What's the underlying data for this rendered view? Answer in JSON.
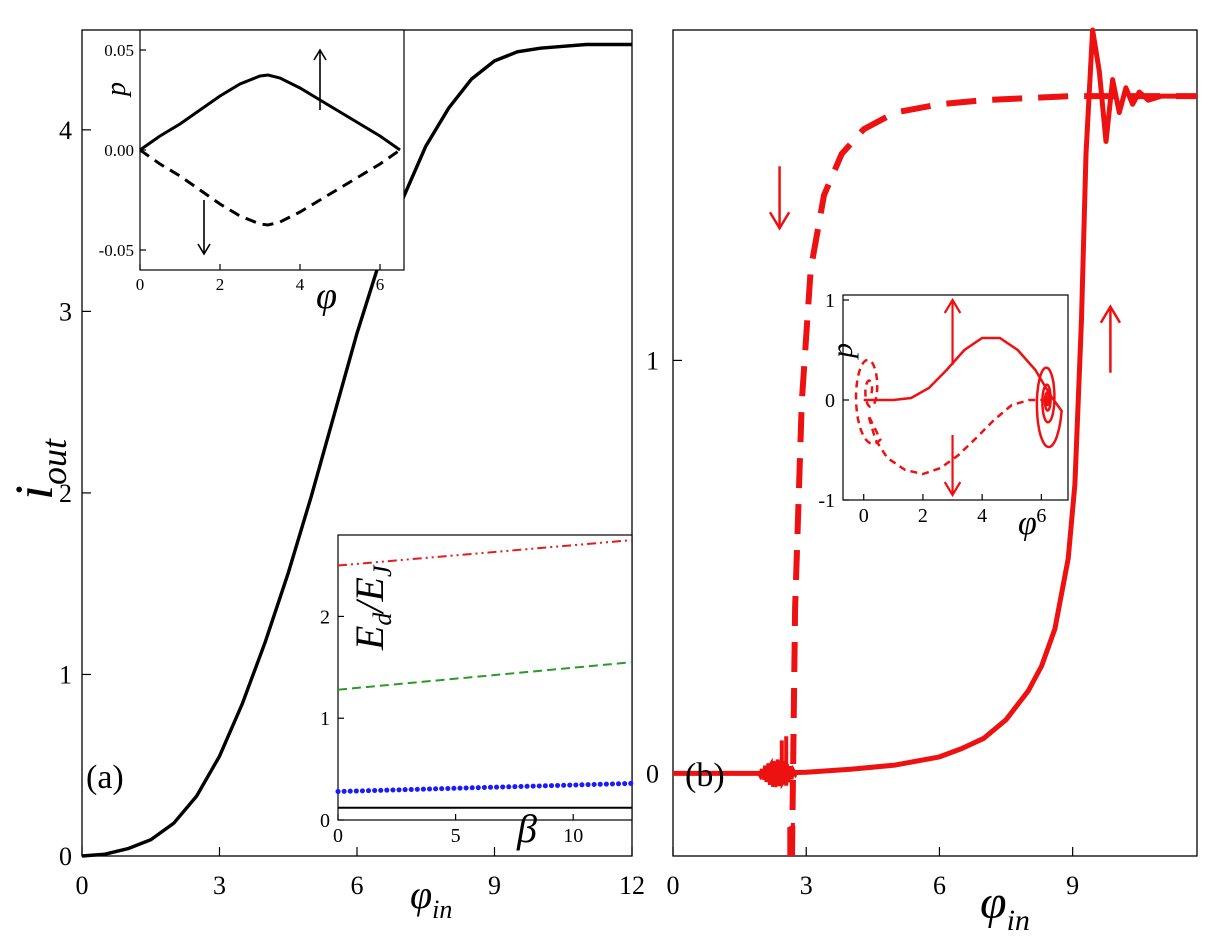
{
  "chart_data": [
    {
      "id": "panel-a",
      "type": "line",
      "panel_label": "(a)",
      "xlabel": "φ",
      "xlabel_sub": "in",
      "ylabel": "i",
      "ylabel_sub": "out",
      "xlim": [
        0,
        12
      ],
      "ylim": [
        0,
        4.55
      ],
      "xticks": [
        0,
        3,
        6,
        9,
        12
      ],
      "yticks": [
        0,
        1,
        2,
        3,
        4
      ],
      "series": [
        {
          "name": "i_out",
          "style": "solid",
          "color": "#000000",
          "x": [
            0,
            0.5,
            1,
            1.5,
            2,
            2.5,
            3,
            3.5,
            4,
            4.5,
            5,
            5.5,
            6,
            6.5,
            7,
            7.5,
            8,
            8.5,
            9,
            9.5,
            10,
            10.5,
            11,
            11.5,
            12
          ],
          "y": [
            0,
            0.01,
            0.04,
            0.09,
            0.18,
            0.33,
            0.55,
            0.84,
            1.18,
            1.56,
            1.98,
            2.43,
            2.88,
            3.28,
            3.62,
            3.91,
            4.12,
            4.28,
            4.38,
            4.43,
            4.45,
            4.46,
            4.47,
            4.47,
            4.47
          ]
        }
      ]
    },
    {
      "id": "inset-a1",
      "type": "line",
      "xlabel": "φ",
      "ylabel": "p",
      "xlim": [
        0,
        6.6
      ],
      "ylim": [
        -0.06,
        0.06
      ],
      "xticks": [
        0,
        2,
        4,
        6
      ],
      "yticks": [
        0.05,
        0.0,
        -0.05
      ],
      "ytick_labels": [
        "0.05",
        "0.00",
        "-0.05"
      ],
      "series": [
        {
          "name": "upper",
          "style": "solid",
          "color": "#000000",
          "x": [
            0,
            0.5,
            1,
            1.5,
            2,
            2.5,
            3,
            3.2,
            3.5,
            4,
            4.5,
            5,
            5.5,
            6,
            6.5
          ],
          "y": [
            0,
            0.007,
            0.013,
            0.02,
            0.027,
            0.033,
            0.037,
            0.0375,
            0.036,
            0.031,
            0.025,
            0.019,
            0.013,
            0.007,
            0.0
          ]
        },
        {
          "name": "lower",
          "style": "dashed",
          "color": "#000000",
          "x": [
            0,
            0.5,
            1,
            1.5,
            2,
            2.5,
            3,
            3.2,
            3.5,
            4,
            4.5,
            5,
            5.5,
            6,
            6.5
          ],
          "y": [
            0,
            -0.007,
            -0.013,
            -0.02,
            -0.027,
            -0.033,
            -0.037,
            -0.0375,
            -0.036,
            -0.031,
            -0.025,
            -0.019,
            -0.013,
            -0.007,
            0.0
          ]
        }
      ],
      "arrows": [
        {
          "x": 4.5,
          "y_from": 0.02,
          "y_to": 0.05,
          "direction": "up"
        },
        {
          "x": 1.6,
          "y_from": -0.025,
          "y_to": -0.052,
          "direction": "down"
        }
      ]
    },
    {
      "id": "inset-a2",
      "type": "line",
      "xlabel": "β",
      "ylabel": "E",
      "ylabel_sub": "d",
      "ylabel_mid": "/E",
      "ylabel_sub2": "J",
      "xlim": [
        0,
        12.5
      ],
      "ylim": [
        0,
        2.8
      ],
      "xticks": [
        0,
        5,
        10
      ],
      "yticks": [
        0,
        1,
        2
      ],
      "series": [
        {
          "name": "red",
          "style": "dashdot",
          "color": "#e41a1c",
          "x": [
            0,
            12.5
          ],
          "y": [
            2.5,
            2.75
          ]
        },
        {
          "name": "green",
          "style": "dashed",
          "color": "#2a9a2a",
          "x": [
            0,
            12.5
          ],
          "y": [
            1.28,
            1.55
          ]
        },
        {
          "name": "blue",
          "style": "dotted",
          "color": "#1a1aff",
          "x": [
            0,
            12.5
          ],
          "y": [
            0.28,
            0.36
          ]
        },
        {
          "name": "black",
          "style": "solid",
          "color": "#000000",
          "x": [
            0,
            12.5
          ],
          "y": [
            0.12,
            0.12
          ]
        }
      ]
    },
    {
      "id": "panel-b",
      "type": "line",
      "panel_label": "(b)",
      "xlabel": "φ",
      "xlabel_sub": "in",
      "xlim": [
        0,
        11.8
      ],
      "ylim": [
        -0.2,
        1.8
      ],
      "xticks": [
        0,
        3,
        6,
        9
      ],
      "yticks": [
        0,
        1
      ],
      "series": [
        {
          "name": "solid",
          "style": "solid",
          "color": "#ee1111",
          "x": [
            0,
            1,
            2,
            3,
            4,
            5,
            6,
            6.5,
            7,
            7.5,
            8,
            8.3,
            8.6,
            8.9,
            9.05,
            9.2,
            9.3,
            9.45
          ],
          "y": [
            0,
            0,
            0,
            0.003,
            0.01,
            0.02,
            0.04,
            0.06,
            0.085,
            0.13,
            0.2,
            0.26,
            0.35,
            0.52,
            0.7,
            1.1,
            1.5,
            1.8
          ],
          "tail_x": [
            9.45,
            9.6,
            9.75,
            9.9,
            10.05,
            10.2,
            10.35,
            10.5,
            10.7,
            11,
            11.8
          ],
          "tail_y": [
            1.8,
            1.7,
            1.53,
            1.68,
            1.6,
            1.66,
            1.62,
            1.65,
            1.63,
            1.64,
            1.64
          ]
        },
        {
          "name": "dashed",
          "style": "dashed",
          "color": "#ee1111",
          "x": [
            2.68,
            2.75,
            2.9,
            3.1,
            3.4,
            3.8,
            4.3,
            5,
            6,
            7,
            8,
            9,
            10,
            11.8
          ],
          "y": [
            -0.2,
            0.4,
            0.9,
            1.22,
            1.4,
            1.5,
            1.56,
            1.6,
            1.62,
            1.63,
            1.635,
            1.64,
            1.64,
            1.64
          ]
        }
      ],
      "arrows": [
        {
          "x": 2.4,
          "y_from": 1.47,
          "y_to": 1.32,
          "direction": "down"
        },
        {
          "x": 9.85,
          "y_from": 0.97,
          "y_to": 1.13,
          "direction": "up"
        }
      ]
    },
    {
      "id": "inset-b",
      "type": "line",
      "xlabel": "φ",
      "ylabel": "p",
      "xlim": [
        -0.7,
        6.9
      ],
      "ylim": [
        -1,
        1.05
      ],
      "xticks": [
        0,
        2,
        4,
        6
      ],
      "yticks": [
        1,
        0,
        -1
      ],
      "series": [
        {
          "name": "solid-spiral",
          "style": "solid",
          "color": "#ee1111"
        },
        {
          "name": "dashed-spiral",
          "style": "dashed",
          "color": "#ee1111"
        }
      ],
      "arrows": [
        {
          "x": 3.0,
          "y_from": 0.35,
          "y_to": 1.0,
          "direction": "up"
        },
        {
          "x": 3.0,
          "y_from": -0.35,
          "y_to": -0.95,
          "direction": "down"
        }
      ]
    }
  ]
}
